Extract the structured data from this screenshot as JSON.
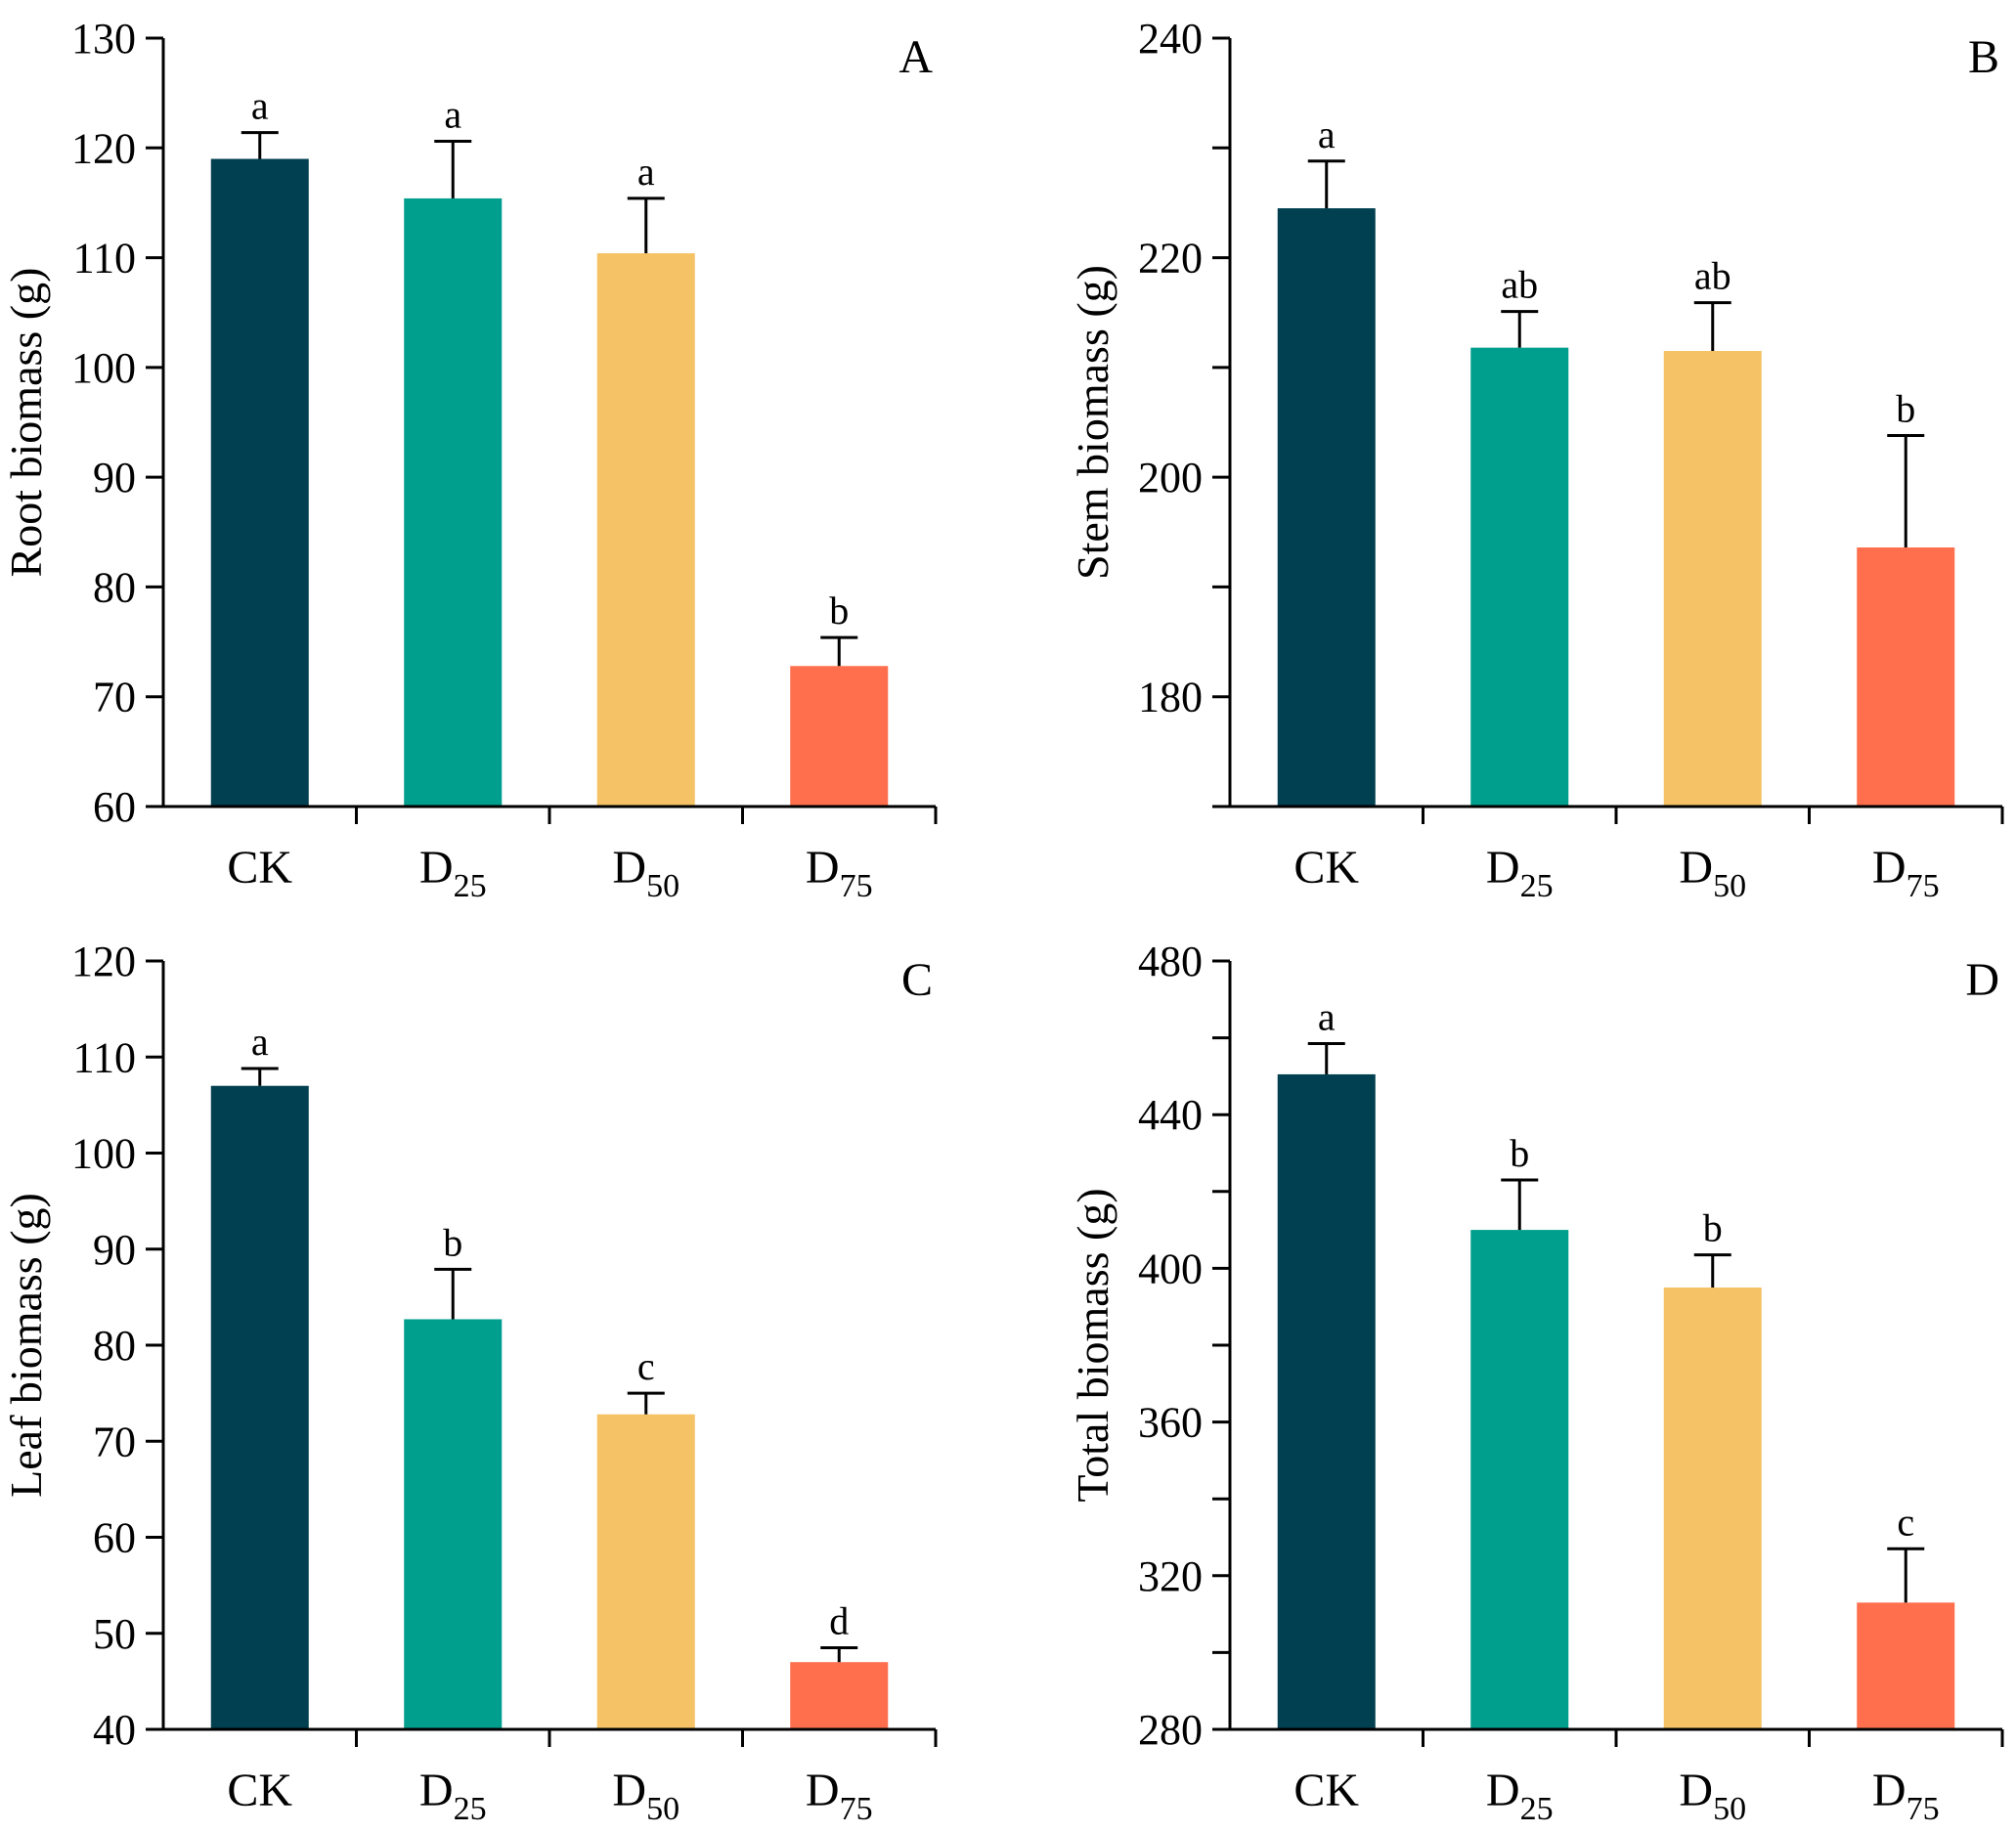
{
  "chart_data": [
    {
      "type": "bar",
      "panel_label": "A",
      "categories": [
        {
          "main": "CK",
          "sub": ""
        },
        {
          "main": "D",
          "sub": "25"
        },
        {
          "main": "D",
          "sub": "50"
        },
        {
          "main": "D",
          "sub": "75"
        }
      ],
      "values": [
        119,
        115.4,
        110.4,
        72.8
      ],
      "errors": [
        2.4,
        5.2,
        5.0,
        2.6
      ],
      "significance": [
        "a",
        "a",
        "a",
        "b"
      ],
      "colors": [
        "#004050",
        "#009E8C",
        "#F5C265",
        "#FF6F4E"
      ],
      "ylabel": "Root biomass (g)",
      "xlabel": "",
      "ylim": [
        60,
        130
      ],
      "yticks": [
        60,
        70,
        80,
        90,
        100,
        110,
        120,
        130
      ]
    },
    {
      "type": "bar",
      "panel_label": "B",
      "categories": [
        {
          "main": "CK",
          "sub": ""
        },
        {
          "main": "D",
          "sub": "25"
        },
        {
          "main": "D",
          "sub": "50"
        },
        {
          "main": "D",
          "sub": "75"
        }
      ],
      "values": [
        224.5,
        211.8,
        211.5,
        193.6
      ],
      "errors": [
        4.3,
        3.3,
        4.4,
        10.2
      ],
      "significance": [
        "a",
        "ab",
        "ab",
        "b"
      ],
      "colors": [
        "#004050",
        "#009E8C",
        "#F5C265",
        "#FF6F4E"
      ],
      "ylabel": "Stem biomass (g)",
      "xlabel": "",
      "ylim": [
        170,
        240
      ],
      "yticks": [
        180,
        200,
        220,
        240
      ],
      "minor_yticks": [
        170,
        190,
        210,
        230
      ]
    },
    {
      "type": "bar",
      "panel_label": "C",
      "categories": [
        {
          "main": "CK",
          "sub": ""
        },
        {
          "main": "D",
          "sub": "25"
        },
        {
          "main": "D",
          "sub": "50"
        },
        {
          "main": "D",
          "sub": "75"
        }
      ],
      "values": [
        107,
        82.7,
        72.8,
        47
      ],
      "errors": [
        1.8,
        5.2,
        2.2,
        1.5
      ],
      "significance": [
        "a",
        "b",
        "c",
        "d"
      ],
      "colors": [
        "#004050",
        "#009E8C",
        "#F5C265",
        "#FF6F4E"
      ],
      "ylabel": "Leaf biomass (g)",
      "xlabel": "",
      "ylim": [
        40,
        120
      ],
      "yticks": [
        40,
        50,
        60,
        70,
        80,
        90,
        100,
        110,
        120
      ]
    },
    {
      "type": "bar",
      "panel_label": "D",
      "categories": [
        {
          "main": "CK",
          "sub": ""
        },
        {
          "main": "D",
          "sub": "25"
        },
        {
          "main": "D",
          "sub": "50"
        },
        {
          "main": "D",
          "sub": "75"
        }
      ],
      "values": [
        450.5,
        410,
        395,
        313
      ],
      "errors": [
        8,
        13,
        8.5,
        14
      ],
      "significance": [
        "a",
        "b",
        "b",
        "c"
      ],
      "colors": [
        "#004050",
        "#009E8C",
        "#F5C265",
        "#FF6F4E"
      ],
      "ylabel": "Total biomass (g)",
      "xlabel": "",
      "ylim": [
        280,
        480
      ],
      "yticks": [
        280,
        320,
        360,
        400,
        440,
        480
      ],
      "minor_yticks": [
        300,
        340,
        380,
        420,
        460
      ]
    }
  ]
}
